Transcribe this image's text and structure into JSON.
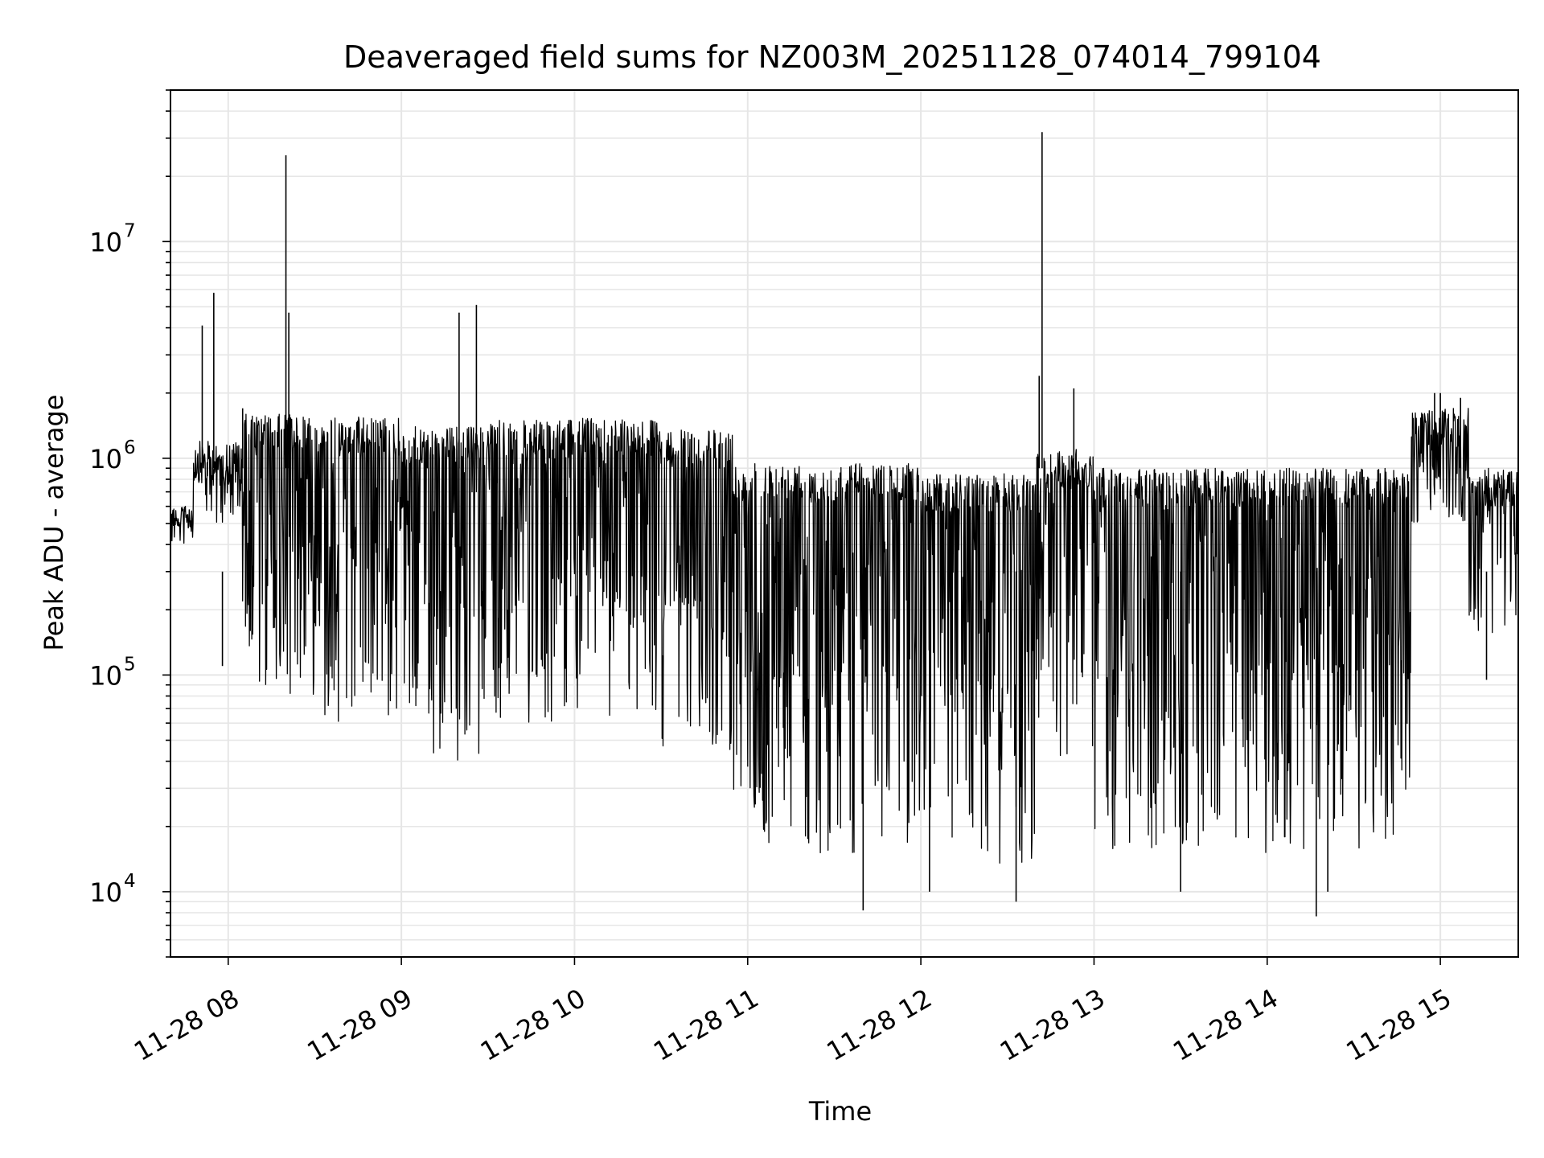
{
  "chart_data": {
    "type": "line",
    "title": "Deaveraged field sums for NZ003M_20251128_074014_799104",
    "xlabel": "Time",
    "ylabel": "Peak ADU - average",
    "yscale": "log",
    "ylim": [
      5000,
      50000000
    ],
    "xlim": [
      "2025-11-28 07:40",
      "2025-11-28 15:27"
    ],
    "grid": true,
    "legend": "none",
    "line_color": "#000000",
    "x_ticks": [
      "2025-11-28 08:00",
      "2025-11-28 09:00",
      "2025-11-28 10:00",
      "2025-11-28 11:00",
      "2025-11-28 12:00",
      "2025-11-28 13:00",
      "2025-11-28 14:00",
      "2025-11-28 15:00"
    ],
    "x_tick_labels": [
      "11-28 08",
      "11-28 09",
      "11-28 10",
      "11-28 11",
      "11-28 12",
      "11-28 13",
      "11-28 14",
      "11-28 15"
    ],
    "y_ticks": [
      10000,
      100000,
      1000000,
      10000000
    ],
    "y_tick_labels": [
      {
        "base": "10",
        "exp": "4"
      },
      {
        "base": "10",
        "exp": "5"
      },
      {
        "base": "10",
        "exp": "6"
      },
      {
        "base": "10",
        "exp": "7"
      }
    ],
    "series": [
      {
        "segments": [
          {
            "start": "2025-11-28 07:40",
            "end": "2025-11-28 07:48",
            "top": 600000,
            "bottom": 480000
          },
          {
            "start": "2025-11-28 07:48",
            "end": "2025-11-28 08:05",
            "top": 1200000,
            "bottom": 500000
          },
          {
            "start": "2025-11-28 08:05",
            "end": "2025-11-28 08:30",
            "top": 1600000,
            "bottom": 80000
          },
          {
            "start": "2025-11-28 08:30",
            "end": "2025-11-28 09:00",
            "top": 1550000,
            "bottom": 60000
          },
          {
            "start": "2025-11-28 09:00",
            "end": "2025-11-28 09:30",
            "top": 1400000,
            "bottom": 40000
          },
          {
            "start": "2025-11-28 09:30",
            "end": "2025-11-28 10:00",
            "top": 1500000,
            "bottom": 60000
          },
          {
            "start": "2025-11-28 10:00",
            "end": "2025-11-28 10:30",
            "top": 1550000,
            "bottom": 60000
          },
          {
            "start": "2025-11-28 10:30",
            "end": "2025-11-28 10:55",
            "top": 1350000,
            "bottom": 45000
          },
          {
            "start": "2025-11-28 10:55",
            "end": "2025-11-28 11:30",
            "top": 950000,
            "bottom": 15000
          },
          {
            "start": "2025-11-28 11:30",
            "end": "2025-11-28 12:00",
            "top": 950000,
            "bottom": 15000
          },
          {
            "start": "2025-11-28 12:00",
            "end": "2025-11-28 12:40",
            "top": 850000,
            "bottom": 12000
          },
          {
            "start": "2025-11-28 12:40",
            "end": "2025-11-28 13:00",
            "top": 1100000,
            "bottom": 40000
          },
          {
            "start": "2025-11-28 13:00",
            "end": "2025-11-28 14:00",
            "top": 900000,
            "bottom": 15000
          },
          {
            "start": "2025-11-28 14:00",
            "end": "2025-11-28 14:50",
            "top": 900000,
            "bottom": 15000
          },
          {
            "start": "2025-11-28 14:50",
            "end": "2025-11-28 15:10",
            "top": 1700000,
            "bottom": 500000
          },
          {
            "start": "2025-11-28 15:10",
            "end": "2025-11-28 15:27",
            "top": 900000,
            "bottom": 150000
          }
        ],
        "spikes": [
          {
            "x": "2025-11-28 07:51",
            "y": 4100000
          },
          {
            "x": "2025-11-28 07:55",
            "y": 5800000
          },
          {
            "x": "2025-11-28 07:58",
            "y": 110000
          },
          {
            "x": "2025-11-28 08:05",
            "y": 1700000
          },
          {
            "x": "2025-11-28 08:20",
            "y": 25000000
          },
          {
            "x": "2025-11-28 08:21",
            "y": 4700000
          },
          {
            "x": "2025-11-28 09:20",
            "y": 4700000
          },
          {
            "x": "2025-11-28 09:26",
            "y": 5100000
          },
          {
            "x": "2025-11-28 11:40",
            "y": 8200
          },
          {
            "x": "2025-11-28 12:03",
            "y": 10000
          },
          {
            "x": "2025-11-28 12:33",
            "y": 9000
          },
          {
            "x": "2025-11-28 12:42",
            "y": 32000000
          },
          {
            "x": "2025-11-28 12:41",
            "y": 2400000
          },
          {
            "x": "2025-11-28 12:53",
            "y": 2100000
          },
          {
            "x": "2025-11-28 13:30",
            "y": 10000
          },
          {
            "x": "2025-11-28 14:17",
            "y": 7700
          },
          {
            "x": "2025-11-28 14:21",
            "y": 10000
          },
          {
            "x": "2025-11-28 14:58",
            "y": 2000000
          },
          {
            "x": "2025-11-28 15:00",
            "y": 2000000
          },
          {
            "x": "2025-11-28 15:07",
            "y": 1900000
          },
          {
            "x": "2025-11-28 15:16",
            "y": 95000
          }
        ]
      }
    ]
  }
}
